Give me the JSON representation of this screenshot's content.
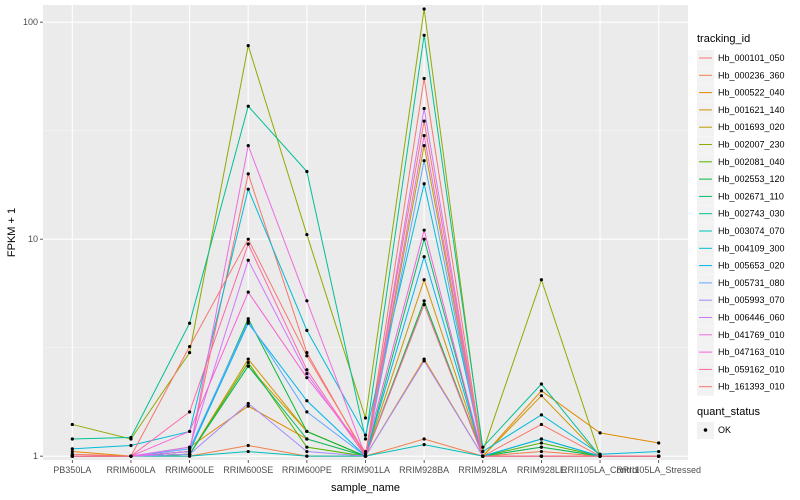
{
  "chart_data": {
    "type": "line",
    "xlabel": "sample_name",
    "ylabel": "FPKM + 1",
    "y_scale": "log10",
    "ylim": [
      0.96,
      120
    ],
    "y_ticks": [
      1,
      10,
      100
    ],
    "y_tick_labels": [
      "1",
      "10",
      "100"
    ],
    "grid": true,
    "legend_position": "right",
    "categories": [
      "PB350LA",
      "RRIM600LA",
      "RRIM600LE",
      "RRIM600SE",
      "RRIM600PE",
      "RRIM901LA",
      "RRIM928BA",
      "RRIM928LA",
      "RRIM928LE",
      "RRII105LA_Control",
      "RRII105LA_Stressed"
    ],
    "legend_color": {
      "title": "tracking_id",
      "entries": [
        "Hb_000101_050",
        "Hb_000236_360",
        "Hb_000522_040",
        "Hb_001621_140",
        "Hb_001693_020",
        "Hb_002007_230",
        "Hb_002081_040",
        "Hb_002553_120",
        "Hb_002671_110",
        "Hb_002743_030",
        "Hb_003074_070",
        "Hb_004109_300",
        "Hb_005653_020",
        "Hb_005731_080",
        "Hb_005993_070",
        "Hb_006446_060",
        "Hb_041769_010",
        "Hb_047163_010",
        "Hb_059162_010",
        "Hb_161393_010"
      ]
    },
    "legend_shape": {
      "title": "quant_status",
      "entries": [
        "OK"
      ]
    },
    "series": [
      {
        "name": "Hb_000101_050",
        "color": "#F8766D",
        "values": [
          1.02,
          1.0,
          1.05,
          20.0,
          3.0,
          1.0,
          55.0,
          1.0,
          1.4,
          1.0,
          1.0
        ]
      },
      {
        "name": "Hb_000236_360",
        "color": "#F07F4C",
        "values": [
          1.0,
          1.0,
          1.0,
          1.12,
          1.0,
          1.0,
          1.2,
          1.0,
          1.05,
          1.0,
          1.0
        ]
      },
      {
        "name": "Hb_000522_040",
        "color": "#E18A00",
        "values": [
          1.05,
          1.0,
          1.1,
          1.7,
          1.2,
          1.0,
          2.8,
          1.0,
          2.0,
          1.28,
          1.15
        ]
      },
      {
        "name": "Hb_001621_140",
        "color": "#CF9400",
        "values": [
          1.0,
          1.0,
          1.02,
          2.8,
          1.3,
          1.0,
          6.5,
          1.0,
          1.9,
          1.0,
          1.0
        ]
      },
      {
        "name": "Hb_001693_020",
        "color": "#BE9C00",
        "values": [
          1.0,
          1.0,
          1.02,
          2.6,
          1.3,
          1.0,
          27.0,
          1.0,
          1.1,
          1.0,
          1.0
        ]
      },
      {
        "name": "Hb_002007_230",
        "color": "#8EAB00",
        "values": [
          1.4,
          1.2,
          3.0,
          78.0,
          10.5,
          1.5,
          115.0,
          1.05,
          6.5,
          1.0,
          1.0
        ]
      },
      {
        "name": "Hb_002081_040",
        "color": "#53B400",
        "values": [
          1.0,
          1.0,
          1.02,
          2.7,
          1.1,
          1.0,
          5.0,
          1.0,
          1.15,
          1.0,
          1.0
        ]
      },
      {
        "name": "Hb_002553_120",
        "color": "#00BA38",
        "values": [
          1.0,
          1.0,
          1.05,
          4.3,
          1.3,
          1.0,
          5.2,
          1.0,
          1.2,
          1.0,
          1.0
        ]
      },
      {
        "name": "Hb_002671_110",
        "color": "#00BE6B",
        "values": [
          1.0,
          1.0,
          1.02,
          2.6,
          1.2,
          1.0,
          10.0,
          1.0,
          1.1,
          1.0,
          1.0
        ]
      },
      {
        "name": "Hb_002743_030",
        "color": "#00C094",
        "values": [
          1.2,
          1.22,
          4.1,
          41.0,
          20.5,
          1.2,
          87.0,
          1.1,
          2.15,
          1.0,
          1.0
        ]
      },
      {
        "name": "Hb_003074_070",
        "color": "#00C0B8",
        "values": [
          1.0,
          1.0,
          1.0,
          1.05,
          1.0,
          1.0,
          1.13,
          1.0,
          1.0,
          1.0,
          1.0
        ]
      },
      {
        "name": "Hb_004109_300",
        "color": "#00BCD8",
        "values": [
          1.08,
          1.12,
          1.3,
          17.0,
          3.8,
          1.25,
          18.0,
          1.05,
          1.55,
          1.02,
          1.05
        ]
      },
      {
        "name": "Hb_005653_020",
        "color": "#00B4EF",
        "values": [
          1.0,
          1.0,
          1.05,
          4.1,
          1.8,
          1.0,
          8.3,
          1.0,
          1.2,
          1.0,
          1.0
        ]
      },
      {
        "name": "Hb_005731_080",
        "color": "#5FA7FF",
        "values": [
          1.0,
          1.0,
          1.08,
          4.2,
          1.6,
          1.0,
          23.0,
          1.0,
          1.0,
          1.0,
          1.0
        ]
      },
      {
        "name": "Hb_005993_070",
        "color": "#A58AFF",
        "values": [
          1.0,
          1.0,
          1.02,
          1.75,
          1.05,
          1.0,
          2.75,
          1.0,
          1.0,
          1.0,
          1.0
        ]
      },
      {
        "name": "Hb_006446_060",
        "color": "#D177FF",
        "values": [
          1.0,
          1.0,
          1.1,
          8.0,
          2.4,
          1.0,
          40.0,
          1.0,
          1.0,
          1.0,
          1.0
        ]
      },
      {
        "name": "Hb_041769_010",
        "color": "#EE6CE0",
        "values": [
          1.0,
          1.0,
          1.05,
          27.0,
          5.2,
          1.0,
          30.0,
          1.0,
          1.0,
          1.0,
          1.0
        ]
      },
      {
        "name": "Hb_047163_010",
        "color": "#FB61D7",
        "values": [
          1.0,
          1.0,
          1.3,
          5.7,
          2.3,
          1.05,
          11.0,
          1.0,
          1.0,
          1.0,
          1.0
        ]
      },
      {
        "name": "Hb_059162_010",
        "color": "#FF66A8",
        "values": [
          1.0,
          1.0,
          1.6,
          9.5,
          2.5,
          1.0,
          5.0,
          1.0,
          1.0,
          1.0,
          1.0
        ]
      },
      {
        "name": "Hb_161393_010",
        "color": "#F8766D",
        "values": [
          1.0,
          1.0,
          3.2,
          10.0,
          2.9,
          1.02,
          35.0,
          1.0,
          1.0,
          1.0,
          1.0
        ]
      }
    ]
  }
}
